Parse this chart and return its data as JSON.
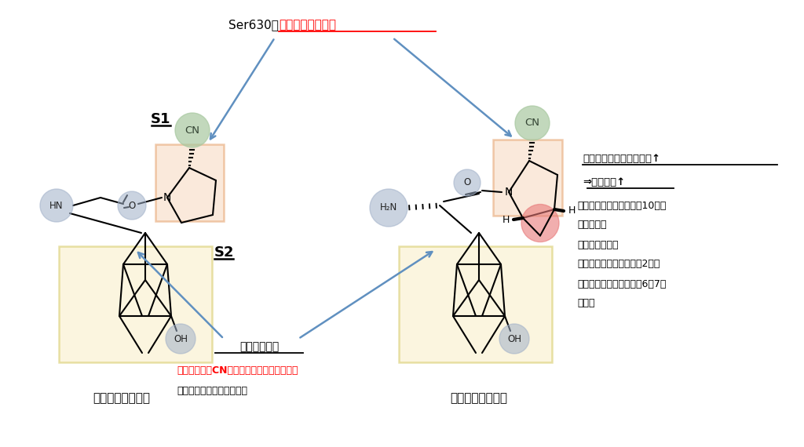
{
  "bg_color": "#ffffff",
  "title_black": "Ser630と",
  "title_red": "可逆的な共有結合",
  "s1_label": "S1",
  "s2_label": "S2",
  "vildagliptin_label": "ビルダグリプチン",
  "saxagliptin_label": "サキサグリプチン",
  "adamantane_label": "アダマンタン",
  "adamantane_note1_red": "・アミノ基とCN基の分子内自己縮合を防ぐ",
  "adamantane_note2": "・広範囲な疏水性相互作用",
  "right_title": "疏水性相互作用で安定性↑",
  "right_sub": "⇒阔害活性↑",
  "right_note1": "・ビルダグリプチンの絀10倍の",
  "right_note2": "　阔害活性",
  "right_note3": "・半減期も長い",
  "right_note4": "（ビルダグリプチン：約2時間",
  "right_note5": "　サキサグリプチン：約6～7時",
  "right_note6": "　間）",
  "green_cn_color": "#a8c8a0",
  "blue_group_color": "#a0b0c8",
  "red_cyclopropane_color": "#e87878",
  "orange_box_color": "#f5d0b0",
  "yellow_box_color": "#f5e8b0",
  "arrow_color": "#6090c0"
}
